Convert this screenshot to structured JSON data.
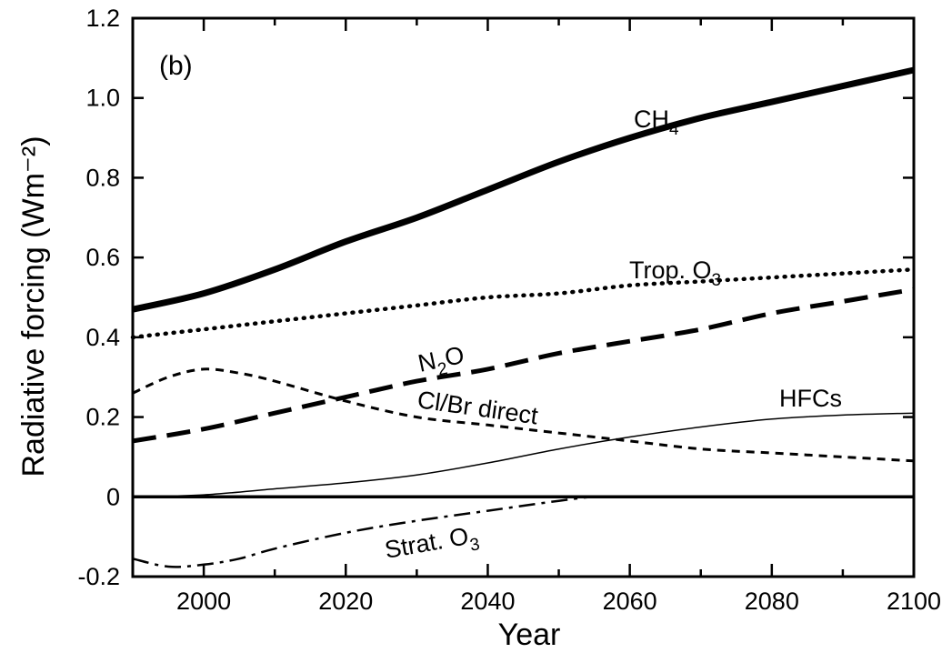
{
  "chart_data": {
    "type": "line",
    "panel_label": "(b)",
    "title": "",
    "xlabel": "Year",
    "ylabel": "Radiative forcing (Wm⁻²)",
    "xlim": [
      1990,
      2100
    ],
    "ylim": [
      -0.2,
      1.2
    ],
    "x_ticks": [
      2000,
      2020,
      2040,
      2060,
      2080,
      2100
    ],
    "y_ticks": [
      -0.2,
      0,
      0.2,
      0.4,
      0.6,
      0.8,
      1.0,
      1.2
    ],
    "y_tick_labels": [
      "-0.2",
      "0",
      "0.2",
      "0.4",
      "0.6",
      "0.8",
      "1.0",
      "1.2"
    ],
    "x_tick_labels": [
      "2000",
      "2020",
      "2040",
      "2060",
      "2080",
      "2100"
    ],
    "grid": false,
    "legend": "none (labels placed on curves)",
    "series": [
      {
        "name": "CH4",
        "label_main": "CH",
        "label_sub": "4",
        "style": "solid-thick",
        "x": [
          1990,
          2000,
          2010,
          2020,
          2030,
          2040,
          2050,
          2060,
          2070,
          2080,
          2090,
          2100
        ],
        "values": [
          0.47,
          0.51,
          0.57,
          0.64,
          0.7,
          0.77,
          0.84,
          0.9,
          0.95,
          0.99,
          1.03,
          1.07
        ]
      },
      {
        "name": "Trop. O3",
        "label_main": "Trop. O",
        "label_sub": "3",
        "style": "dotted",
        "x": [
          1990,
          2000,
          2010,
          2020,
          2030,
          2040,
          2050,
          2060,
          2070,
          2080,
          2090,
          2100
        ],
        "values": [
          0.4,
          0.42,
          0.44,
          0.46,
          0.48,
          0.5,
          0.51,
          0.53,
          0.54,
          0.55,
          0.56,
          0.57
        ]
      },
      {
        "name": "N2O",
        "label_main": "N",
        "label_sub": "2",
        "label_tail": "O",
        "style": "dashed-long",
        "x": [
          1990,
          2000,
          2010,
          2020,
          2030,
          2040,
          2050,
          2060,
          2070,
          2080,
          2090,
          2100
        ],
        "values": [
          0.14,
          0.17,
          0.21,
          0.25,
          0.29,
          0.32,
          0.36,
          0.39,
          0.42,
          0.46,
          0.49,
          0.52
        ]
      },
      {
        "name": "Cl/Br direct",
        "label_main": "Cl/Br direct",
        "style": "dashed-short",
        "x": [
          1990,
          1995,
          2000,
          2005,
          2010,
          2020,
          2030,
          2040,
          2050,
          2060,
          2070,
          2080,
          2090,
          2100
        ],
        "values": [
          0.26,
          0.3,
          0.32,
          0.31,
          0.29,
          0.24,
          0.2,
          0.18,
          0.16,
          0.14,
          0.12,
          0.11,
          0.1,
          0.09
        ]
      },
      {
        "name": "HFCs",
        "label_main": "HFCs",
        "style": "solid-thin",
        "x": [
          1990,
          2000,
          2010,
          2020,
          2030,
          2040,
          2050,
          2060,
          2070,
          2080,
          2090,
          2100
        ],
        "values": [
          0.0,
          0.005,
          0.02,
          0.035,
          0.055,
          0.085,
          0.12,
          0.15,
          0.175,
          0.195,
          0.205,
          0.21
        ]
      },
      {
        "name": "Strat. O3",
        "label_main": "Strat. O",
        "label_sub": "3",
        "style": "dash-dot",
        "x": [
          1990,
          1995,
          2000,
          2005,
          2010,
          2020,
          2030,
          2040,
          2050,
          2055,
          2060,
          2080,
          2100
        ],
        "values": [
          -0.155,
          -0.175,
          -0.17,
          -0.155,
          -0.13,
          -0.09,
          -0.06,
          -0.035,
          -0.01,
          0.0,
          0.0,
          0.0,
          0.0
        ]
      }
    ],
    "reference_line": {
      "y": 0
    }
  }
}
